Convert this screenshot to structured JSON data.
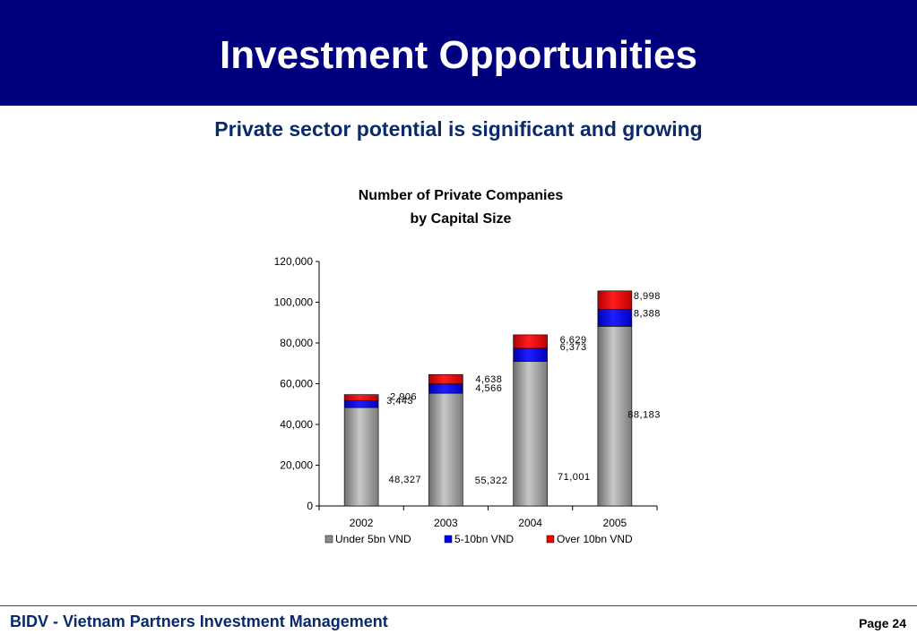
{
  "slide": {
    "title": "Investment Opportunities",
    "subtitle": "Private sector potential is significant and growing",
    "footer_left": "BIDV - Vietnam Partners Investment Management",
    "footer_right": "Page 24"
  },
  "chart_data": {
    "type": "bar",
    "stacked": true,
    "title_lines": [
      "Number of Private Companies",
      "by Capital Size"
    ],
    "categories": [
      "2002",
      "2003",
      "2004",
      "2005"
    ],
    "series": [
      {
        "name": "Under 5bn VND",
        "color": "#8c8c8c",
        "values": [
          48327,
          55322,
          71001,
          88183
        ],
        "labels": [
          "48,327",
          "55,322",
          "71,001",
          "88,183"
        ]
      },
      {
        "name": "5-10bn VND",
        "color": "#0000ff",
        "values": [
          3443,
          4566,
          6373,
          8388
        ],
        "labels": [
          "3,443",
          "4,566",
          "6,373",
          "8,388"
        ]
      },
      {
        "name": "Over 10bn VND",
        "color": "#ff0000",
        "values": [
          2906,
          4638,
          6629,
          8998
        ],
        "labels": [
          "2,906",
          "4,638",
          "6,629",
          "8,998"
        ]
      }
    ],
    "ylim": [
      0,
      120000
    ],
    "yticks": [
      {
        "value": 0,
        "label": "0"
      },
      {
        "value": 20000,
        "label": "20,000"
      },
      {
        "value": 40000,
        "label": "40,000"
      },
      {
        "value": 60000,
        "label": "60,000"
      },
      {
        "value": 80000,
        "label": "80,000"
      },
      {
        "value": 100000,
        "label": "100,000"
      },
      {
        "value": 120000,
        "label": "120,000"
      }
    ],
    "legend_position": "bottom",
    "grid": false
  }
}
